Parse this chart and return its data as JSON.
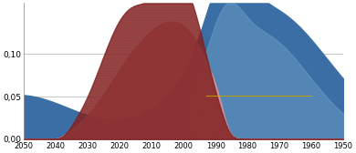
{
  "x_ticks": [
    2050,
    2040,
    2030,
    2020,
    2010,
    2000,
    1990,
    1980,
    1970,
    1960,
    1950
  ],
  "yticks": [
    0.0,
    0.05,
    0.1
  ],
  "ytick_labels": [
    "0,00",
    "0,05",
    "0,10"
  ],
  "ylim": [
    0,
    0.16
  ],
  "background_color": "#ffffff",
  "grid_color": "#b0b0b0",
  "blue_color": "#3a6ea5",
  "blue_inner_color": "#7aaacf",
  "dark_red_color": "#7b2020",
  "pink_color": "#d4929a",
  "hatch_color": "#8b3030",
  "yellow_color": "#c8a000"
}
